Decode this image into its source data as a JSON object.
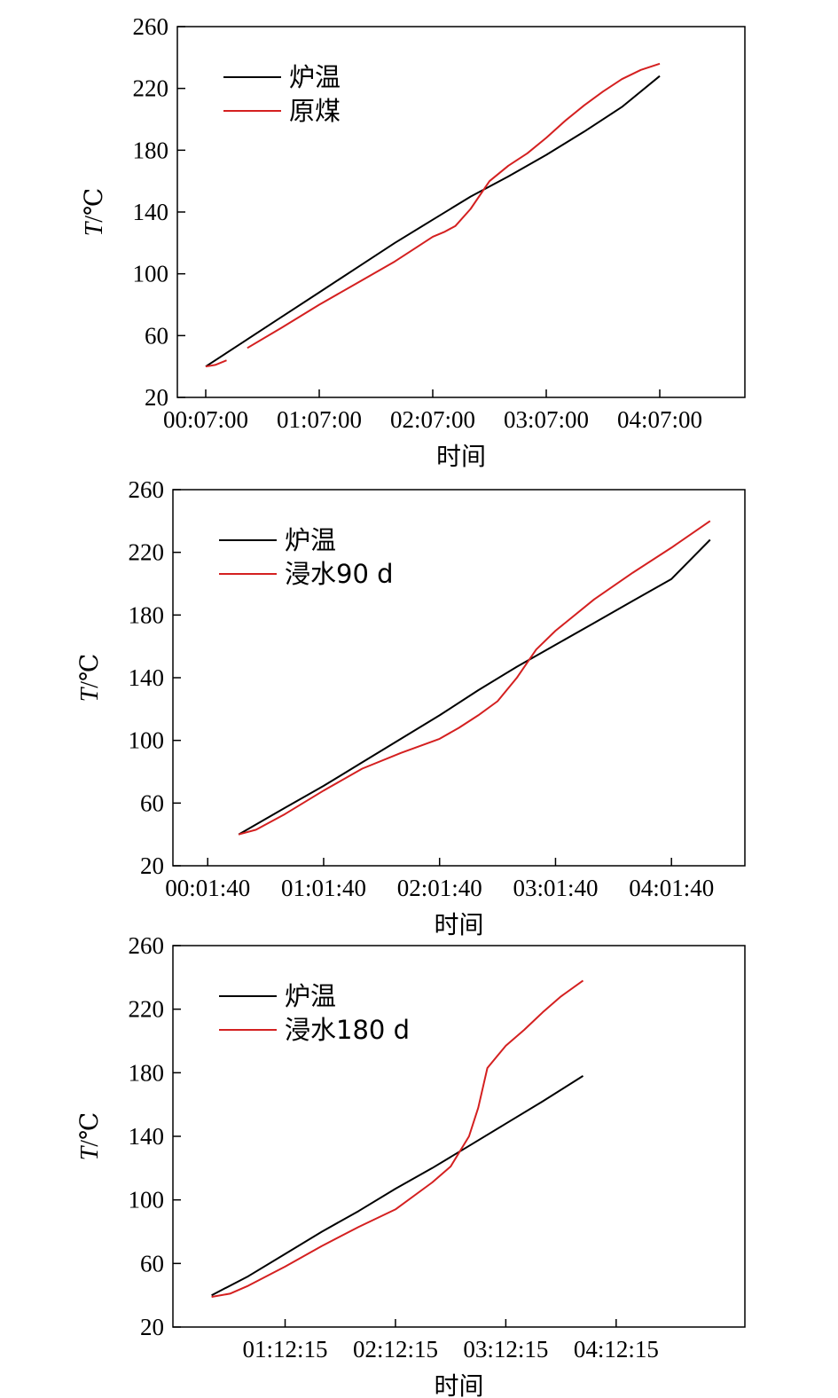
{
  "chart_data": [
    {
      "type": "line",
      "xlabel": "时间",
      "ylabel_var": "T",
      "ylabel_unit": "/℃",
      "ylim": [
        20,
        260
      ],
      "yticks": [
        20,
        60,
        100,
        140,
        180,
        220,
        260
      ],
      "x_unit": "minutes",
      "xlim": [
        -15,
        285
      ],
      "xticks": [
        {
          "value": 0,
          "label": "00:07:00"
        },
        {
          "value": 60,
          "label": "01:07:00"
        },
        {
          "value": 120,
          "label": "02:07:00"
        },
        {
          "value": 180,
          "label": "03:07:00"
        },
        {
          "value": 240,
          "label": "04:07:00"
        }
      ],
      "series": [
        {
          "name": "炉温",
          "color": "#000000",
          "x": [
            0,
            20,
            40,
            60,
            80,
            100,
            120,
            140,
            160,
            180,
            200,
            220,
            240
          ],
          "y": [
            40,
            56,
            72,
            88,
            104,
            120,
            135,
            150,
            163,
            177,
            192,
            208,
            228
          ]
        },
        {
          "name": "原煤",
          "color": "#d42020",
          "segments": [
            {
              "x": [
                0,
                5,
                11
              ],
              "y": [
                40,
                41,
                44
              ]
            },
            {
              "x": [
                22,
                40,
                60,
                80,
                100,
                110,
                120,
                126,
                132,
                140,
                150,
                160,
                170,
                180,
                190,
                200,
                210,
                220,
                230,
                240
              ],
              "y": [
                52,
                65,
                80,
                94,
                108,
                116,
                124,
                127,
                131,
                142,
                160,
                170,
                178,
                188,
                199,
                209,
                218,
                226,
                232,
                236
              ]
            }
          ]
        }
      ],
      "legend_placement": "top-left"
    },
    {
      "type": "line",
      "xlabel": "时间",
      "ylabel_var": "T",
      "ylabel_unit": "/℃",
      "ylim": [
        20,
        260
      ],
      "yticks": [
        20,
        60,
        100,
        140,
        180,
        220,
        260
      ],
      "x_unit": "minutes",
      "xlim": [
        -18,
        278
      ],
      "xticks": [
        {
          "value": 0,
          "label": "00:01:40"
        },
        {
          "value": 60,
          "label": "01:01:40"
        },
        {
          "value": 120,
          "label": "02:01:40"
        },
        {
          "value": 180,
          "label": "03:01:40"
        },
        {
          "value": 240,
          "label": "04:01:40"
        }
      ],
      "series": [
        {
          "name": "炉温",
          "color": "#000000",
          "x": [
            16,
            40,
            60,
            80,
            100,
            120,
            140,
            160,
            180,
            200,
            220,
            240,
            260
          ],
          "y": [
            40,
            57,
            71,
            86,
            101,
            116,
            132,
            147,
            161,
            175,
            189,
            203,
            228
          ]
        },
        {
          "name": "浸水90 d",
          "color": "#d42020",
          "x": [
            16,
            25,
            40,
            60,
            80,
            100,
            120,
            130,
            140,
            150,
            160,
            170,
            180,
            200,
            220,
            240,
            260
          ],
          "y": [
            40,
            43,
            53,
            68,
            82,
            92,
            101,
            108,
            116,
            125,
            140,
            158,
            170,
            190,
            207,
            223,
            240
          ]
        }
      ],
      "legend_placement": "top-left"
    },
    {
      "type": "line",
      "xlabel": "时间",
      "ylabel_var": "T",
      "ylabel_unit": "/℃",
      "ylim": [
        20,
        260
      ],
      "yticks": [
        20,
        60,
        100,
        140,
        180,
        220,
        260
      ],
      "x_unit": "minutes",
      "xlim": [
        -61,
        250
      ],
      "xticks": [
        {
          "value": 0,
          "label": "01:12:15"
        },
        {
          "value": 60,
          "label": "02:12:15"
        },
        {
          "value": 120,
          "label": "03:12:15"
        },
        {
          "value": 180,
          "label": "04:12:15"
        }
      ],
      "series": [
        {
          "name": "炉温",
          "color": "#000000",
          "x": [
            -40,
            -20,
            0,
            20,
            40,
            60,
            80,
            100,
            120,
            140,
            162
          ],
          "y": [
            40,
            52,
            66,
            80,
            93,
            107,
            120,
            134,
            148,
            162,
            178
          ]
        },
        {
          "name": "浸水180 d",
          "color": "#d42020",
          "x": [
            -40,
            -30,
            -20,
            0,
            20,
            40,
            60,
            80,
            90,
            100,
            105,
            110,
            115,
            120,
            130,
            140,
            150,
            162
          ],
          "y": [
            39,
            41,
            46,
            58,
            71,
            83,
            94,
            111,
            121,
            140,
            158,
            183,
            190,
            197,
            207,
            218,
            228,
            238
          ]
        }
      ],
      "legend_placement": "top-left"
    }
  ]
}
